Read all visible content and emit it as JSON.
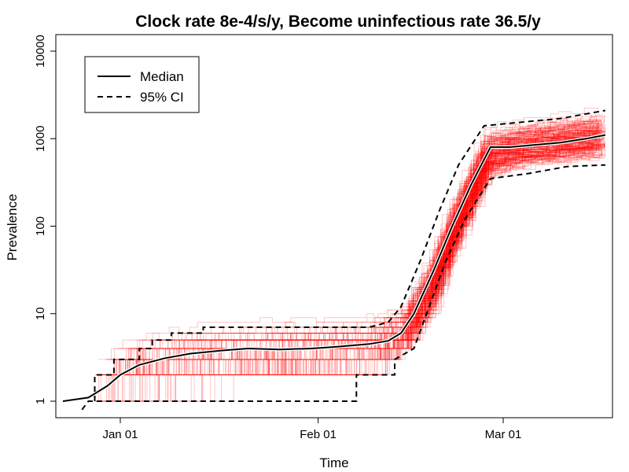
{
  "chart_data": {
    "type": "line",
    "title": "Clock rate 8e-4/s/y, Become uninfectious rate 36.5/y",
    "xlabel": "Time",
    "ylabel": "Prevalence",
    "y_scale": "log",
    "ylim": [
      1,
      10000
    ],
    "y_ticks": [
      {
        "value": 1,
        "label": "1"
      },
      {
        "value": 10,
        "label": "10"
      },
      {
        "value": 100,
        "label": "100"
      },
      {
        "value": 1000,
        "label": "1000"
      },
      {
        "value": 10000,
        "label": "10000"
      }
    ],
    "x_ticks": [
      {
        "date": "2020-01-01",
        "label": "Jan 01"
      },
      {
        "date": "2020-02-01",
        "label": "Feb 01"
      },
      {
        "date": "2020-03-01",
        "label": "Mar 01"
      }
    ],
    "legend": {
      "position": "top-left",
      "entries": [
        {
          "label": "Median",
          "style": "solid"
        },
        {
          "label": "95% CI",
          "style": "dashed"
        }
      ]
    },
    "colors": {
      "trajectories": "#ff0000",
      "summary": "#000000",
      "background": "#ffffff"
    },
    "series": [
      {
        "name": "Median",
        "style": "solid",
        "points": [
          {
            "x": "2019-12-23",
            "y": 1
          },
          {
            "x": "2019-12-27",
            "y": 1.1
          },
          {
            "x": "2019-12-30",
            "y": 1.5
          },
          {
            "x": "2020-01-01",
            "y": 2
          },
          {
            "x": "2020-01-04",
            "y": 2.6
          },
          {
            "x": "2020-01-08",
            "y": 3.1
          },
          {
            "x": "2020-01-12",
            "y": 3.5
          },
          {
            "x": "2020-01-17",
            "y": 3.8
          },
          {
            "x": "2020-01-21",
            "y": 4
          },
          {
            "x": "2020-01-26",
            "y": 3.9
          },
          {
            "x": "2020-01-31",
            "y": 4
          },
          {
            "x": "2020-02-04",
            "y": 4.2
          },
          {
            "x": "2020-02-09",
            "y": 4.5
          },
          {
            "x": "2020-02-12",
            "y": 4.9
          },
          {
            "x": "2020-02-14",
            "y": 6
          },
          {
            "x": "2020-02-16",
            "y": 10
          },
          {
            "x": "2020-02-19",
            "y": 30
          },
          {
            "x": "2020-02-22",
            "y": 100
          },
          {
            "x": "2020-02-25",
            "y": 300
          },
          {
            "x": "2020-02-28",
            "y": 800
          },
          {
            "x": "2020-03-02",
            "y": 800
          },
          {
            "x": "2020-03-06",
            "y": 850
          },
          {
            "x": "2020-03-10",
            "y": 900
          },
          {
            "x": "2020-03-14",
            "y": 1000
          },
          {
            "x": "2020-03-17",
            "y": 1100
          }
        ]
      },
      {
        "name": "95% CI",
        "bound": "upper",
        "style": "dashed",
        "points": [
          {
            "x": "2019-12-28",
            "y": 1
          },
          {
            "x": "2019-12-28",
            "y": 2
          },
          {
            "x": "2019-12-31",
            "y": 2
          },
          {
            "x": "2019-12-31",
            "y": 3
          },
          {
            "x": "2020-01-04",
            "y": 3
          },
          {
            "x": "2020-01-04",
            "y": 4
          },
          {
            "x": "2020-01-06",
            "y": 4
          },
          {
            "x": "2020-01-06",
            "y": 5
          },
          {
            "x": "2020-01-09",
            "y": 5
          },
          {
            "x": "2020-01-09",
            "y": 6
          },
          {
            "x": "2020-01-14",
            "y": 6
          },
          {
            "x": "2020-01-14",
            "y": 7
          },
          {
            "x": "2020-02-09",
            "y": 7
          },
          {
            "x": "2020-02-12",
            "y": 8
          },
          {
            "x": "2020-02-14",
            "y": 12
          },
          {
            "x": "2020-02-17",
            "y": 40
          },
          {
            "x": "2020-02-20",
            "y": 150
          },
          {
            "x": "2020-02-23",
            "y": 500
          },
          {
            "x": "2020-02-27",
            "y": 1400
          },
          {
            "x": "2020-03-02",
            "y": 1500
          },
          {
            "x": "2020-03-10",
            "y": 1700
          },
          {
            "x": "2020-03-17",
            "y": 2100
          }
        ]
      },
      {
        "name": "95% CI",
        "bound": "lower",
        "style": "dashed",
        "points": [
          {
            "x": "2019-12-26",
            "y": 0.8
          },
          {
            "x": "2019-12-27",
            "y": 1
          },
          {
            "x": "2020-02-07",
            "y": 1
          },
          {
            "x": "2020-02-07",
            "y": 2
          },
          {
            "x": "2020-02-13",
            "y": 2
          },
          {
            "x": "2020-02-13",
            "y": 3
          },
          {
            "x": "2020-02-16",
            "y": 4
          },
          {
            "x": "2020-02-18",
            "y": 10
          },
          {
            "x": "2020-02-21",
            "y": 40
          },
          {
            "x": "2020-02-24",
            "y": 120
          },
          {
            "x": "2020-02-28",
            "y": 350
          },
          {
            "x": "2020-03-05",
            "y": 400
          },
          {
            "x": "2020-03-11",
            "y": 480
          },
          {
            "x": "2020-03-17",
            "y": 500
          }
        ]
      }
    ],
    "band": {
      "label": "simulated trajectories",
      "points": [
        {
          "x": "2019-12-28",
          "lo": 1,
          "hi": 3
        },
        {
          "x": "2020-01-04",
          "lo": 1,
          "hi": 6
        },
        {
          "x": "2020-01-14",
          "lo": 1,
          "hi": 8
        },
        {
          "x": "2020-02-09",
          "lo": 1.5,
          "hi": 10
        },
        {
          "x": "2020-02-14",
          "lo": 2.5,
          "hi": 14
        },
        {
          "x": "2020-02-18",
          "lo": 6,
          "hi": 50
        },
        {
          "x": "2020-02-22",
          "lo": 40,
          "hi": 250
        },
        {
          "x": "2020-02-27",
          "lo": 250,
          "hi": 1500
        },
        {
          "x": "2020-03-03",
          "lo": 350,
          "hi": 1700
        },
        {
          "x": "2020-03-17",
          "lo": 450,
          "hi": 2400
        }
      ]
    }
  }
}
